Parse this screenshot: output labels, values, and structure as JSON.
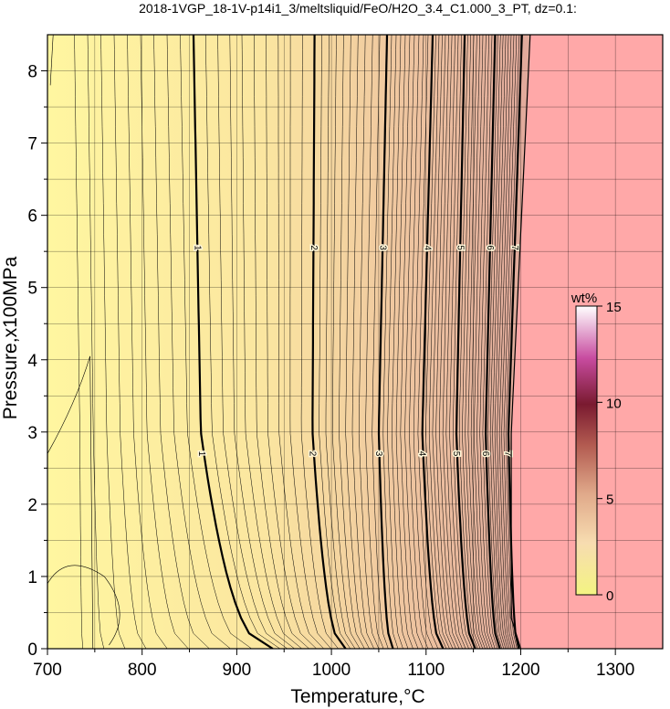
{
  "chart_data": {
    "type": "contour",
    "title": "2018-1VGP_18-1V-p14i1_3/meltsliquid/FeO/H2O_3.4_C1.000_3_PT, dz=0.1:",
    "xlabel": "Temperature,°C",
    "ylabel": "Pressure,x100MPa",
    "xlim": [
      700,
      1350
    ],
    "ylim": [
      0,
      8.5
    ],
    "xticks": [
      700,
      800,
      900,
      1000,
      1100,
      1200,
      1300
    ],
    "yticks": [
      0,
      1,
      2,
      3,
      4,
      5,
      6,
      7,
      8
    ],
    "grid": true,
    "contour_interval": 0.1,
    "saturation_boundary": {
      "top_T": 1210,
      "mid_T": 1190,
      "bottom_T": 1200,
      "fill": "#ffa8a8"
    },
    "labeled_contours": [
      {
        "label": "1",
        "T_at_P0": 938,
        "T_at_P3": 862,
        "T_at_P8": 855
      },
      {
        "label": "2",
        "T_at_P0": 1015,
        "T_at_P3": 980,
        "T_at_P8": 982
      },
      {
        "label": "3",
        "T_at_P0": 1065,
        "T_at_P3": 1050,
        "T_at_P8": 1058
      },
      {
        "label": "4",
        "T_at_P0": 1118,
        "T_at_P3": 1096,
        "T_at_P8": 1106
      },
      {
        "label": "5",
        "T_at_P0": 1152,
        "T_at_P3": 1132,
        "T_at_P8": 1140
      },
      {
        "label": "6",
        "T_at_P0": 1178,
        "T_at_P3": 1163,
        "T_at_P8": 1172
      },
      {
        "label": "7",
        "T_at_P0": 1198,
        "T_at_P3": 1187,
        "T_at_P8": 1200
      }
    ],
    "colorbar": {
      "label": "wt%",
      "min": 0,
      "max": 15,
      "ticks": [
        0,
        5,
        10,
        15
      ],
      "colors": [
        "#f4f482",
        "#f7d9a6",
        "#e6a07a",
        "#b05046",
        "#7a1a30",
        "#d040a0",
        "#ffffff"
      ]
    }
  }
}
